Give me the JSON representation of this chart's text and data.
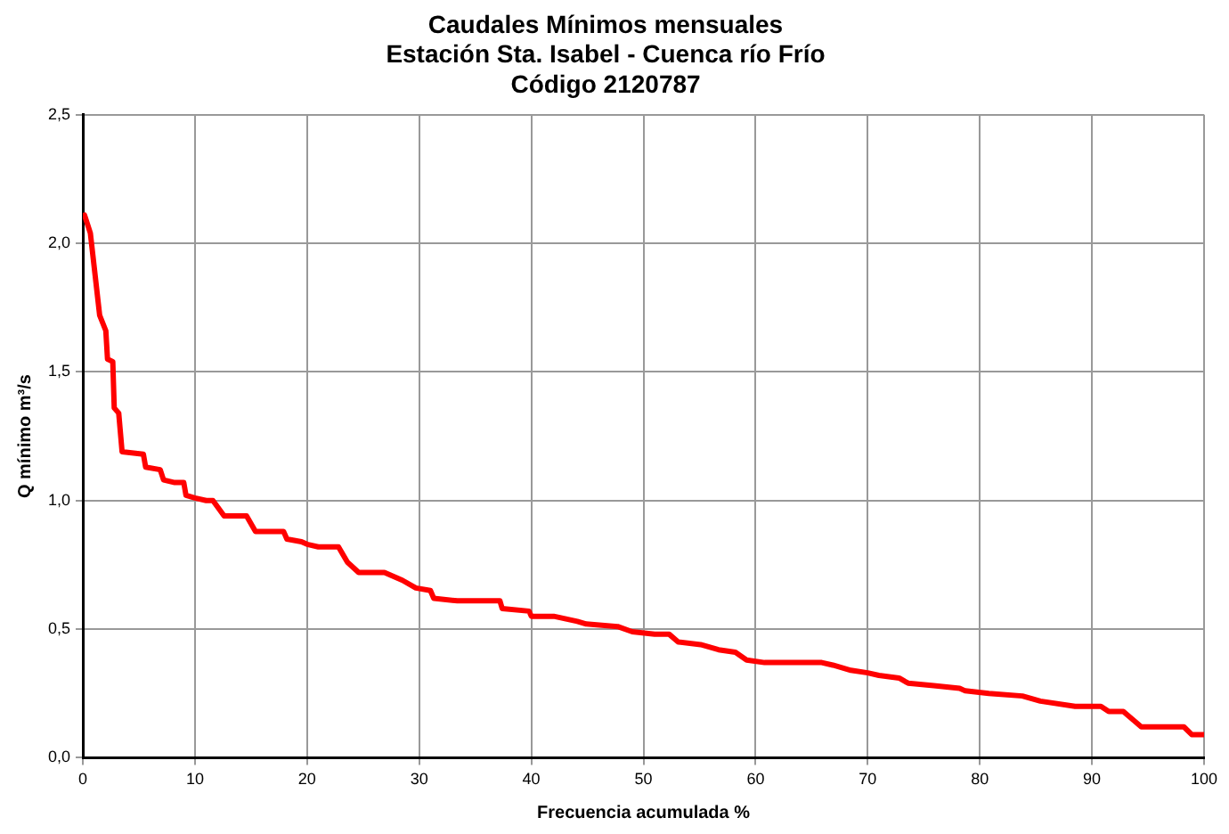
{
  "chart_data": {
    "type": "line",
    "title": "Caudales Mínimos mensuales\nEstación Sta. Isabel - Cuenca río Frío\nCódigo 2120787",
    "xlabel": "Frecuencia acumulada %",
    "ylabel": "Q mínimo m³/s",
    "x": [
      0.15,
      0.67,
      1.5,
      2.05,
      2.2,
      2.67,
      2.8,
      3.2,
      3.5,
      5.4,
      5.6,
      6.9,
      7.2,
      8.2,
      9.0,
      9.2,
      10,
      11,
      11.6,
      12.6,
      14.6,
      15.4,
      17.9,
      18.2,
      19.5,
      20,
      21,
      22.8,
      23.6,
      24.6,
      26.9,
      28.5,
      29.7,
      31,
      31.3,
      33.4,
      37.2,
      37.4,
      39.8,
      40,
      42,
      44.1,
      44.9,
      47.7,
      49,
      51,
      52.3,
      53.1,
      55.1,
      56.7,
      58.2,
      59.2,
      60.8,
      65.9,
      66.9,
      68.5,
      70,
      71,
      72.8,
      73.6,
      75.9,
      78.2,
      78.7,
      80.8,
      83.8,
      85.4,
      88.5,
      90.8,
      91.5,
      92.8,
      94.4,
      98.2,
      98.9,
      100
    ],
    "series": [
      {
        "color": "#ff0000",
        "values": [
          2.11,
          2.04,
          1.72,
          1.66,
          1.55,
          1.54,
          1.36,
          1.34,
          1.19,
          1.18,
          1.13,
          1.12,
          1.08,
          1.07,
          1.07,
          1.02,
          1.01,
          1.0,
          1.0,
          0.94,
          0.94,
          0.88,
          0.88,
          0.85,
          0.84,
          0.83,
          0.82,
          0.82,
          0.76,
          0.72,
          0.72,
          0.69,
          0.66,
          0.65,
          0.62,
          0.61,
          0.61,
          0.58,
          0.57,
          0.55,
          0.55,
          0.53,
          0.52,
          0.51,
          0.49,
          0.48,
          0.48,
          0.45,
          0.44,
          0.42,
          0.41,
          0.38,
          0.37,
          0.37,
          0.36,
          0.34,
          0.33,
          0.32,
          0.31,
          0.29,
          0.28,
          0.27,
          0.26,
          0.25,
          0.24,
          0.22,
          0.2,
          0.2,
          0.18,
          0.18,
          0.12,
          0.12,
          0.09,
          0.09
        ]
      }
    ],
    "xlim": [
      0,
      100
    ],
    "xticks": [
      0,
      10,
      20,
      30,
      40,
      50,
      60,
      70,
      80,
      90,
      100
    ],
    "ylim": [
      0,
      2.5
    ],
    "yticks": [
      {
        "value": 0,
        "label": "0,0"
      },
      {
        "value": 0.5,
        "label": "0,5"
      },
      {
        "value": 1,
        "label": "1,0"
      },
      {
        "value": 1.5,
        "label": "1,5"
      },
      {
        "value": 2,
        "label": "2,0"
      },
      {
        "value": 2.5,
        "label": "2,5"
      }
    ],
    "grid": true,
    "legend": false,
    "marker": "none",
    "line_style": "solid"
  }
}
